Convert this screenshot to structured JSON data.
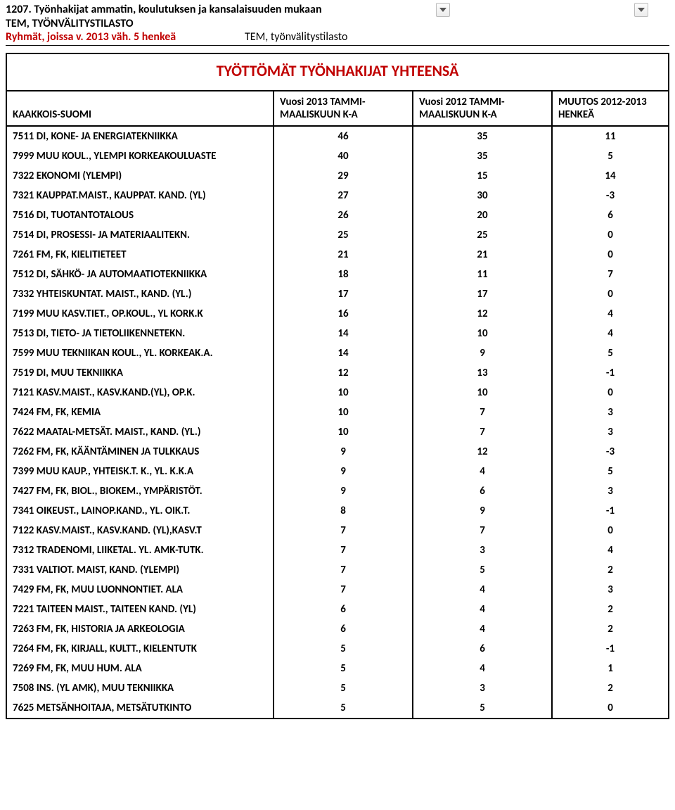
{
  "header": {
    "title1": "1207. Työnhakijat ammatin, koulutuksen ja kansalaisuuden mukaan",
    "title2": "TEM, TYÖNVÄLITYSTILASTO",
    "subtitle_red": "Ryhmät, joissa v. 2013 väh. 5 henkeä",
    "subtitle_src": "TEM, työnvälitystilasto"
  },
  "main": {
    "big_title": "TYÖTTÖMÄT TYÖNHAKIJAT YHTEENSÄ",
    "region_label": "KAAKKOIS-SUOMI",
    "col1": "Vuosi 2013 TAMMI-MAALISKUUN K-A",
    "col2": "Vuosi 2012 TAMMI-MAALISKUUN K-A",
    "col3": "MUUTOS 2012-2013 HENKEÄ"
  },
  "rows": [
    {
      "label": "7511 DI, KONE- JA ENERGIATEKNIIKKA",
      "v1": "46",
      "v2": "35",
      "v3": "11"
    },
    {
      "label": "7999 MUU KOUL., YLEMPI KORKEAKOULUASTE",
      "v1": "40",
      "v2": "35",
      "v3": "5"
    },
    {
      "label": "7322 EKONOMI (YLEMPI)",
      "v1": "29",
      "v2": "15",
      "v3": "14"
    },
    {
      "label": "7321 KAUPPAT.MAIST., KAUPPAT. KAND. (YL)",
      "v1": "27",
      "v2": "30",
      "v3": "-3"
    },
    {
      "label": "7516 DI, TUOTANTOTALOUS",
      "v1": "26",
      "v2": "20",
      "v3": "6"
    },
    {
      "label": "7514 DI, PROSESSI- JA MATERIAALITEKN.",
      "v1": "25",
      "v2": "25",
      "v3": "0"
    },
    {
      "label": "7261 FM, FK, KIELITIETEET",
      "v1": "21",
      "v2": "21",
      "v3": "0"
    },
    {
      "label": "7512 DI, SÄHKÖ- JA AUTOMAATIOTEKNIIKKA",
      "v1": "18",
      "v2": "11",
      "v3": "7"
    },
    {
      "label": "7332 YHTEISKUNTAT. MAIST., KAND. (YL.)",
      "v1": "17",
      "v2": "17",
      "v3": "0"
    },
    {
      "label": "7199 MUU KASV.TIET., OP.KOUL., YL KORK.K",
      "v1": "16",
      "v2": "12",
      "v3": "4"
    },
    {
      "label": "7513 DI, TIETO- JA TIETOLIIKENNETEKN.",
      "v1": "14",
      "v2": "10",
      "v3": "4"
    },
    {
      "label": "7599 MUU TEKNIIKAN KOUL., YL. KORKEAK.A.",
      "v1": "14",
      "v2": "9",
      "v3": "5"
    },
    {
      "label": "7519 DI, MUU TEKNIIKKA",
      "v1": "12",
      "v2": "13",
      "v3": "-1"
    },
    {
      "label": "7121 KASV.MAIST., KASV.KAND.(YL), OP.K.",
      "v1": "10",
      "v2": "10",
      "v3": "0"
    },
    {
      "label": "7424 FM, FK, KEMIA",
      "v1": "10",
      "v2": "7",
      "v3": "3"
    },
    {
      "label": "7622 MAATAL-METSÄT. MAIST., KAND. (YL.)",
      "v1": "10",
      "v2": "7",
      "v3": "3"
    },
    {
      "label": "7262 FM, FK, KÄÄNTÄMINEN JA TULKKAUS",
      "v1": "9",
      "v2": "12",
      "v3": "-3"
    },
    {
      "label": "7399 MUU KAUP., YHTEISK.T. K., YL. K.K.A",
      "v1": "9",
      "v2": "4",
      "v3": "5"
    },
    {
      "label": "7427 FM, FK, BIOL., BIOKEM., YMPÄRISTÖT.",
      "v1": "9",
      "v2": "6",
      "v3": "3"
    },
    {
      "label": "7341 OIKEUST., LAINOP.KAND., YL. OIK.T.",
      "v1": "8",
      "v2": "9",
      "v3": "-1"
    },
    {
      "label": "7122 KASV.MAIST., KASV.KAND. (YL),KASV.T",
      "v1": "7",
      "v2": "7",
      "v3": "0"
    },
    {
      "label": "7312 TRADENOMI, LIIKETAL. YL. AMK-TUTK.",
      "v1": "7",
      "v2": "3",
      "v3": "4"
    },
    {
      "label": "7331 VALTIOT. MAIST, KAND. (YLEMPI)",
      "v1": "7",
      "v2": "5",
      "v3": "2"
    },
    {
      "label": "7429 FM, FK, MUU LUONNONTIET. ALA",
      "v1": "7",
      "v2": "4",
      "v3": "3"
    },
    {
      "label": "7221 TAITEEN MAIST., TAITEEN KAND. (YL)",
      "v1": "6",
      "v2": "4",
      "v3": "2"
    },
    {
      "label": "7263 FM, FK, HISTORIA JA ARKEOLOGIA",
      "v1": "6",
      "v2": "4",
      "v3": "2"
    },
    {
      "label": "7264 FM, FK, KIRJALL, KULTT., KIELENTUTK",
      "v1": "5",
      "v2": "6",
      "v3": "-1"
    },
    {
      "label": "7269 FM, FK, MUU HUM. ALA",
      "v1": "5",
      "v2": "4",
      "v3": "1"
    },
    {
      "label": "7508 INS. (YL AMK), MUU TEKNIIKKA",
      "v1": "5",
      "v2": "3",
      "v3": "2"
    },
    {
      "label": "7625 METSÄNHOITAJA, METSÄTUTKINTO",
      "v1": "5",
      "v2": "5",
      "v3": "0"
    }
  ],
  "style": {
    "accent_color": "#c00000",
    "border_color": "#000000",
    "font": "Calibri",
    "title_fontsize": 16,
    "bigtitle_fontsize": 22,
    "cell_fontsize": 15
  }
}
